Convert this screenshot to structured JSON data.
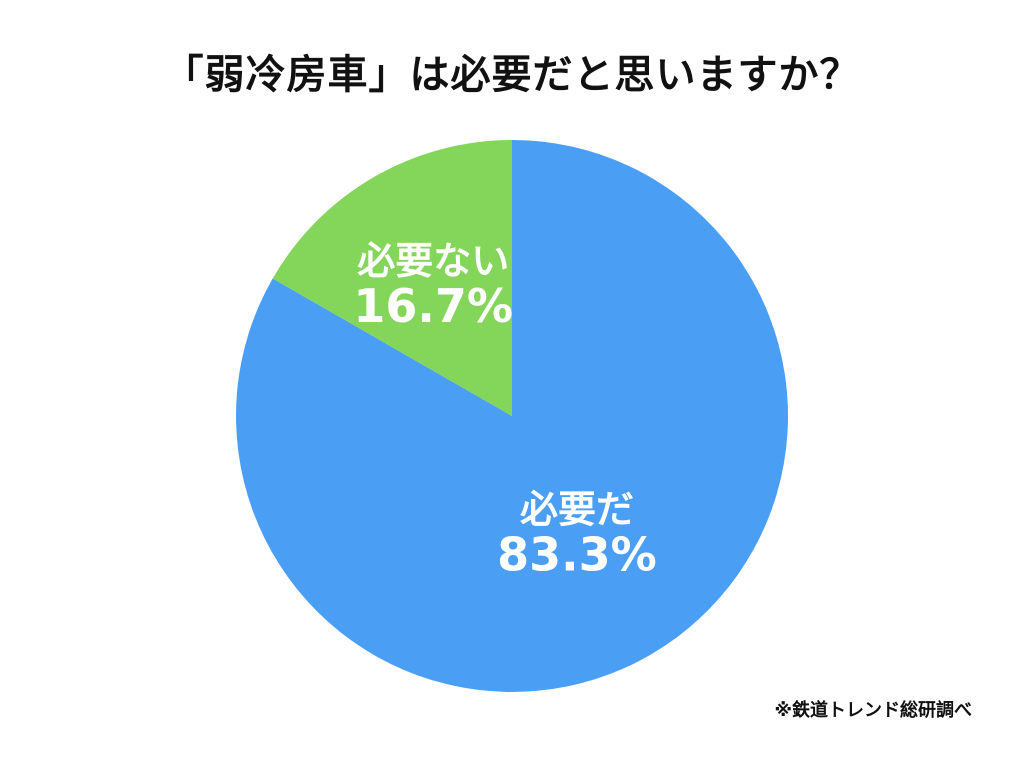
{
  "chart_data": {
    "type": "pie",
    "title": "「弱冷房車」は必要だと思いますか？",
    "slices": [
      {
        "label": "必要だ",
        "value": 83.3,
        "value_label": "83.3%",
        "color": "#4a9ff5"
      },
      {
        "label": "必要ない",
        "value": 16.7,
        "value_label": "16.7%",
        "color": "#84d65a"
      }
    ],
    "start_angle_deg": 0,
    "direction": "clockwise",
    "legend": "none",
    "source": "※鉄道トレンド総研調べ"
  }
}
